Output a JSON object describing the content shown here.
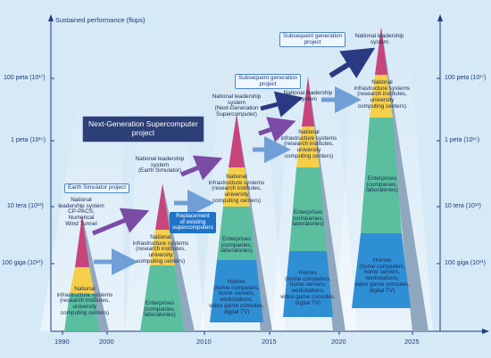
{
  "y_axis_label": "Sustained performance (flops)",
  "ticks": [
    {
      "text": "100 peta (10¹⁷)"
    },
    {
      "text": "1 peta (10¹⁵)"
    },
    {
      "text": "10 tera (10¹³)"
    },
    {
      "text": "100 giga (10¹¹)"
    }
  ],
  "years": [
    "1990",
    "2000",
    "2010",
    "2015",
    "2020",
    "2025"
  ],
  "callouts": {
    "earth_simulator_project": "Earth Simulator project",
    "next_gen_project": "Next-Generation Supercomputer\nproject",
    "replacement": "Replacement\nof existing\nsupercomputers",
    "subsequent_1": "Subsequent generation\nproject",
    "subsequent_2": "Subsequent generation\nproject"
  },
  "pyramid1": {
    "top": "National\nleadership system\nCP-PACS,\nNumerical\nWind Tunnel",
    "base": "National\ninfrastructure systems\n(research institutes,\nuniversity\ncomputing centers)"
  },
  "pyramid2": {
    "top": "National leadership\nsystem\n(Earth Simulator)",
    "mid": "National\ninfrastructure systems\n(research institutes,\nuniversity\ncomputing centers)",
    "base": "Enterprises\n(companies,\nlaboratories)"
  },
  "pyramid3": {
    "top": "National leadership\nsystem\n(Next-Generation\nSupercomputer)",
    "mid": "National\ninfrastructure systems\n(research institutes,\nuniversity\ncomputing centers)",
    "ent": "Enterprises\n(companies,\nlaboratories)",
    "homes": "Homes\n(home computers,\nhome servers,\nworkstations,\nvideo game consoles,\ndigital TV)"
  },
  "pyramid4": {
    "top": "National leadership\nsystem",
    "mid": "National\ninfrastructure systems\n(research institutes,\nuniversity\ncomputing centers)",
    "ent": "Enterprises\n(companies,\nlaboratories)",
    "homes": "Homes\n(home computers,\nhome servers,\nworkstations,\nvideo game consoles,\ndigital TV)"
  },
  "pyramid5": {
    "top": "National leadership\nsystem",
    "mid": "National\ninfrastructure systems\n(research institutes,\nuniversity\ncomputing centers)",
    "ent": "Enterprises\n(companies,\nlaboratories)",
    "homes": "Homes\n(home computers,\nhome servers,\nworkstations,\nvideo game consoles,\ndigital TV)"
  },
  "colors": {
    "background": "#d6e9f6",
    "leadership": "#c8457b",
    "infrastructure": "#f6cf4a",
    "enterprises": "#5bbf9f",
    "homes": "#2f8fd4",
    "axis": "#1b3d7a",
    "arrow_purple": "#7b4ba6",
    "arrow_blue": "#6f9fd6",
    "arrow_navy": "#2a3a82"
  }
}
